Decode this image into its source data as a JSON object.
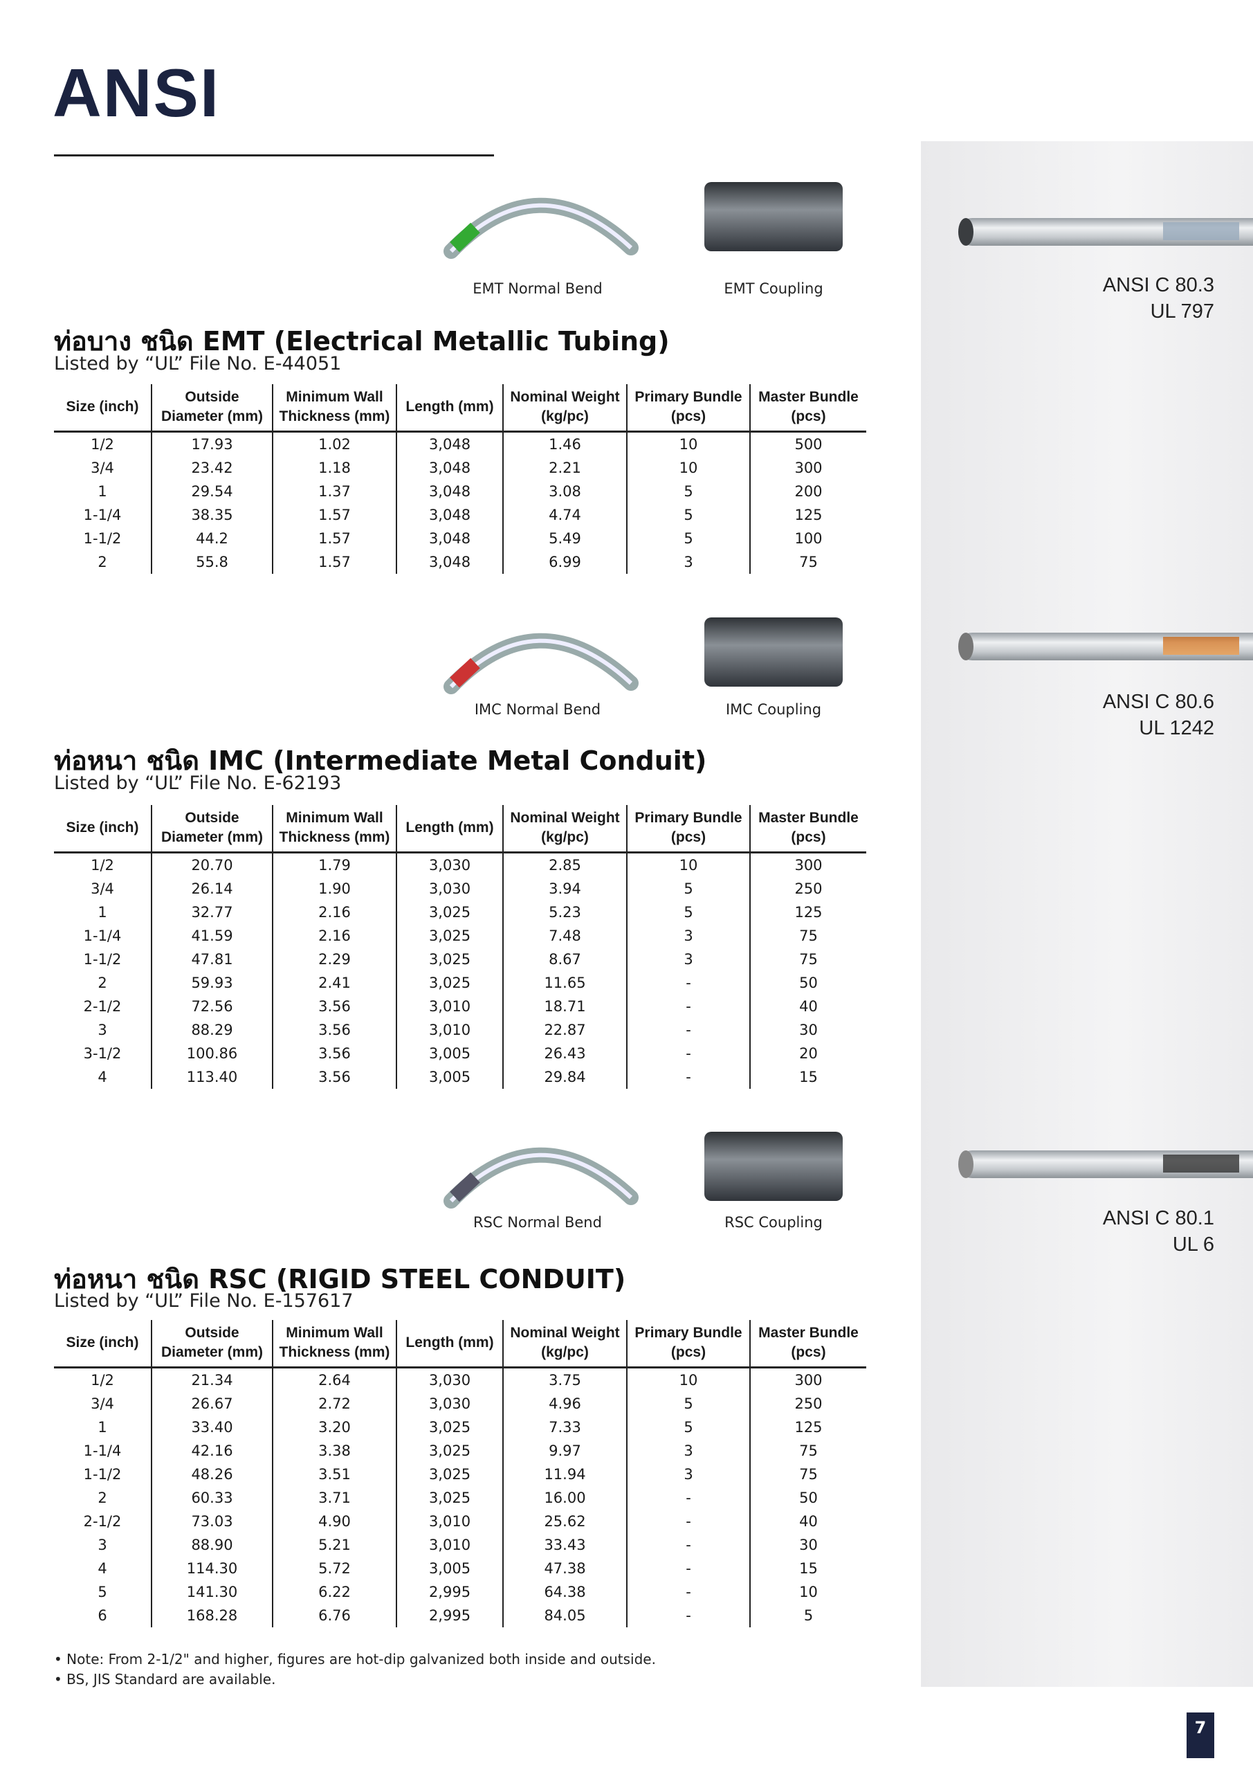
{
  "page": {
    "title": "ANSI",
    "page_number": "7"
  },
  "columns": [
    "Size (inch)",
    "Outside Diameter (mm)",
    "Minimum Wall Thickness (mm)",
    "Length (mm)",
    "Nominal Weight (kg/pc)",
    "Primary Bundle (pcs)",
    "Master Bundle (pcs)"
  ],
  "sections": [
    {
      "heading": "ท่อบาง ชนิด EMT (Electrical Metallic Tubing)",
      "listed": "Listed by “UL” File No. E-44051",
      "bend_caption": "EMT Normal Bend",
      "coupling_caption": "EMT Coupling",
      "rows": [
        [
          "1/2",
          "17.93",
          "1.02",
          "3,048",
          "1.46",
          "10",
          "500"
        ],
        [
          "3/4",
          "23.42",
          "1.18",
          "3,048",
          "2.21",
          "10",
          "300"
        ],
        [
          "1",
          "29.54",
          "1.37",
          "3,048",
          "3.08",
          "5",
          "200"
        ],
        [
          "1-1/4",
          "38.35",
          "1.57",
          "3,048",
          "4.74",
          "5",
          "125"
        ],
        [
          "1-1/2",
          "44.2",
          "1.57",
          "3,048",
          "5.49",
          "5",
          "100"
        ],
        [
          "2",
          "55.8",
          "1.57",
          "3,048",
          "6.99",
          "3",
          "75"
        ]
      ]
    },
    {
      "heading": "ท่อหนา ชนิด IMC (Intermediate Metal Conduit)",
      "listed": "Listed by “UL” File No. E-62193",
      "bend_caption": "IMC Normal Bend",
      "coupling_caption": "IMC Coupling",
      "rows": [
        [
          "1/2",
          "20.70",
          "1.79",
          "3,030",
          "2.85",
          "10",
          "300"
        ],
        [
          "3/4",
          "26.14",
          "1.90",
          "3,030",
          "3.94",
          "5",
          "250"
        ],
        [
          "1",
          "32.77",
          "2.16",
          "3,025",
          "5.23",
          "5",
          "125"
        ],
        [
          "1-1/4",
          "41.59",
          "2.16",
          "3,025",
          "7.48",
          "3",
          "75"
        ],
        [
          "1-1/2",
          "47.81",
          "2.29",
          "3,025",
          "8.67",
          "3",
          "75"
        ],
        [
          "2",
          "59.93",
          "2.41",
          "3,025",
          "11.65",
          "-",
          "50"
        ],
        [
          "2-1/2",
          "72.56",
          "3.56",
          "3,010",
          "18.71",
          "-",
          "40"
        ],
        [
          "3",
          "88.29",
          "3.56",
          "3,010",
          "22.87",
          "-",
          "30"
        ],
        [
          "3-1/2",
          "100.86",
          "3.56",
          "3,005",
          "26.43",
          "-",
          "20"
        ],
        [
          "4",
          "113.40",
          "3.56",
          "3,005",
          "29.84",
          "-",
          "15"
        ]
      ]
    },
    {
      "heading": "ท่อหนา ชนิด RSC (RIGID STEEL CONDUIT)",
      "listed": "Listed by “UL” File No. E-157617",
      "bend_caption": "RSC Normal Bend",
      "coupling_caption": "RSC Coupling",
      "rows": [
        [
          "1/2",
          "21.34",
          "2.64",
          "3,030",
          "3.75",
          "10",
          "300"
        ],
        [
          "3/4",
          "26.67",
          "2.72",
          "3,030",
          "4.96",
          "5",
          "250"
        ],
        [
          "1",
          "33.40",
          "3.20",
          "3,025",
          "7.33",
          "5",
          "125"
        ],
        [
          "1-1/4",
          "42.16",
          "3.38",
          "3,025",
          "9.97",
          "3",
          "75"
        ],
        [
          "1-1/2",
          "48.26",
          "3.51",
          "3,025",
          "11.94",
          "3",
          "75"
        ],
        [
          "2",
          "60.33",
          "3.71",
          "3,025",
          "16.00",
          "-",
          "50"
        ],
        [
          "2-1/2",
          "73.03",
          "4.90",
          "3,010",
          "25.62",
          "-",
          "40"
        ],
        [
          "3",
          "88.90",
          "5.21",
          "3,010",
          "33.43",
          "-",
          "30"
        ],
        [
          "4",
          "114.30",
          "5.72",
          "3,005",
          "47.38",
          "-",
          "15"
        ],
        [
          "5",
          "141.30",
          "6.22",
          "2,995",
          "64.38",
          "-",
          "10"
        ],
        [
          "6",
          "168.28",
          "6.76",
          "2,995",
          "84.05",
          "-",
          "5"
        ]
      ]
    }
  ],
  "standards": [
    {
      "line1": "ANSI C 80.3",
      "line2": "UL 797"
    },
    {
      "line1": "ANSI C 80.6",
      "line2": "UL 1242"
    },
    {
      "line1": "ANSI C 80.1",
      "line2": "UL 6"
    }
  ],
  "notes": [
    "• Note: From 2-1/2\" and higher,  figures are hot-dip galvanized both inside and outside.",
    "• BS, JIS Standard are available."
  ]
}
